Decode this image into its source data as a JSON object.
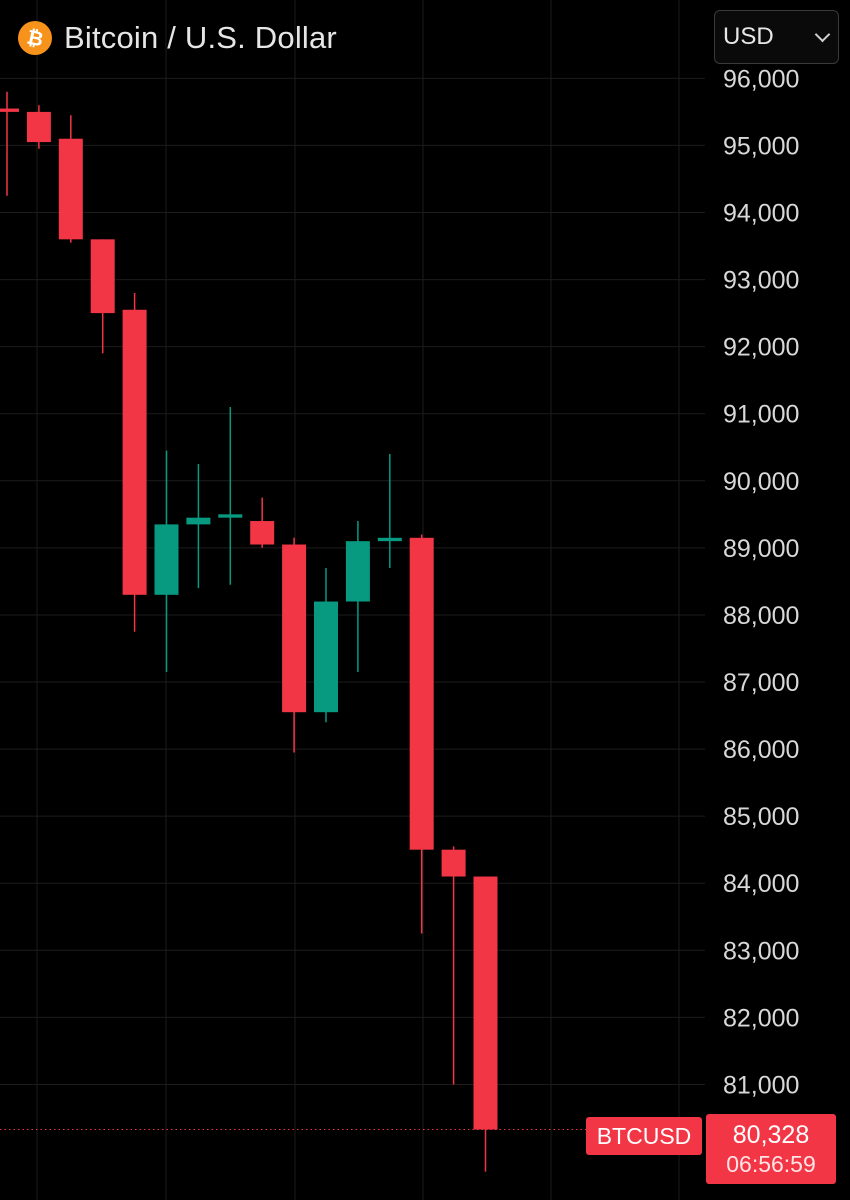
{
  "header": {
    "logo_glyph": "₿",
    "logo_icon": "bitcoin-icon",
    "title": "Bitcoin / U.S. Dollar"
  },
  "currency": {
    "selected": "USD"
  },
  "colors": {
    "background": "#000000",
    "up": "#089981",
    "down": "#f23645",
    "grid": "#1c1c1c",
    "logo": "#f7931a"
  },
  "price_line": {
    "symbol": "BTCUSD",
    "price": "80,328",
    "countdown": "06:56:59",
    "value": 80328
  },
  "chart_data": {
    "type": "candlestick",
    "title": "Bitcoin / U.S. Dollar",
    "xlabel": "",
    "ylabel": "",
    "ylim": [
      79650,
      96050
    ],
    "y_ticks": [
      81000,
      82000,
      83000,
      84000,
      85000,
      86000,
      87000,
      88000,
      89000,
      90000,
      91000,
      92000,
      93000,
      94000,
      95000,
      96000
    ],
    "y_tick_labels": [
      "81,000",
      "82,000",
      "83,000",
      "84,000",
      "85,000",
      "86,000",
      "87,000",
      "88,000",
      "89,000",
      "90,000",
      "91,000",
      "92,000",
      "93,000",
      "94,000",
      "95,000",
      "96,000"
    ],
    "grid": true,
    "candles": [
      {
        "open": 95550,
        "high": 95800,
        "low": 94250,
        "close": 95500
      },
      {
        "open": 95500,
        "high": 95600,
        "low": 94950,
        "close": 95050
      },
      {
        "open": 95100,
        "high": 95450,
        "low": 93550,
        "close": 93600
      },
      {
        "open": 93600,
        "high": 93600,
        "low": 91900,
        "close": 92500
      },
      {
        "open": 92550,
        "high": 92800,
        "low": 87750,
        "close": 88300
      },
      {
        "open": 88300,
        "high": 90450,
        "low": 87150,
        "close": 89350
      },
      {
        "open": 89350,
        "high": 90250,
        "low": 88400,
        "close": 89450
      },
      {
        "open": 89450,
        "high": 91100,
        "low": 88450,
        "close": 89500
      },
      {
        "open": 89400,
        "high": 89750,
        "low": 89000,
        "close": 89050
      },
      {
        "open": 89050,
        "high": 89150,
        "low": 85950,
        "close": 86550
      },
      {
        "open": 86550,
        "high": 88700,
        "low": 86400,
        "close": 88200
      },
      {
        "open": 88200,
        "high": 89400,
        "low": 87150,
        "close": 89100
      },
      {
        "open": 89100,
        "high": 90400,
        "low": 88700,
        "close": 89150
      },
      {
        "open": 89150,
        "high": 89200,
        "low": 83250,
        "close": 84500
      },
      {
        "open": 84500,
        "high": 84550,
        "low": 81000,
        "close": 84100
      },
      {
        "open": 84100,
        "high": 84100,
        "low": 79700,
        "close": 80328
      }
    ]
  }
}
